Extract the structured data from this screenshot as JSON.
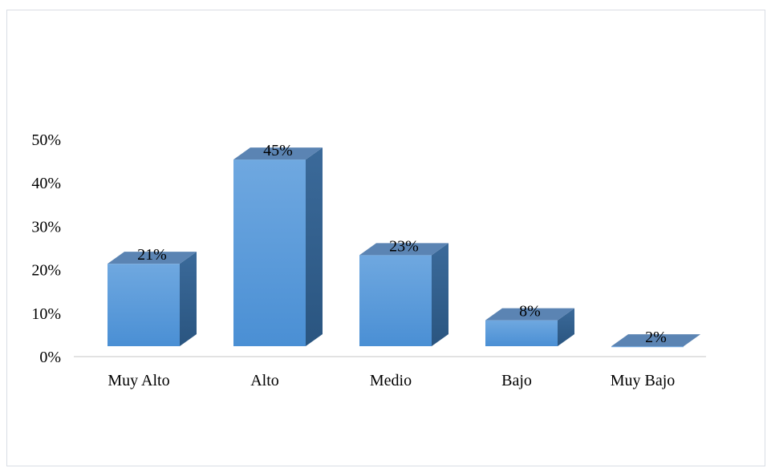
{
  "chart_data": {
    "type": "bar",
    "style": "3d-column",
    "categories": [
      "Muy Alto",
      "Alto",
      "Medio",
      "Bajo",
      "Muy Bajo"
    ],
    "values": [
      21,
      45,
      23,
      8,
      2
    ],
    "data_labels": [
      "21%",
      "45%",
      "23%",
      "8%",
      "2%"
    ],
    "y_ticks": [
      0,
      10,
      20,
      30,
      40,
      50
    ],
    "y_tick_labels": [
      "0%",
      "10%",
      "20%",
      "30%",
      "40%",
      "50%"
    ],
    "ylim": [
      0,
      50
    ],
    "grid": false,
    "legend": "none",
    "title": "",
    "xlabel": "",
    "ylabel": "",
    "colors": {
      "front_top": "#6fa8e0",
      "front_bottom": "#4a8fd4",
      "side_top": "#3b6a9a",
      "side_bottom": "#2a5580",
      "top_face": "#5b84b3",
      "axis": "#d9d9d9"
    }
  }
}
